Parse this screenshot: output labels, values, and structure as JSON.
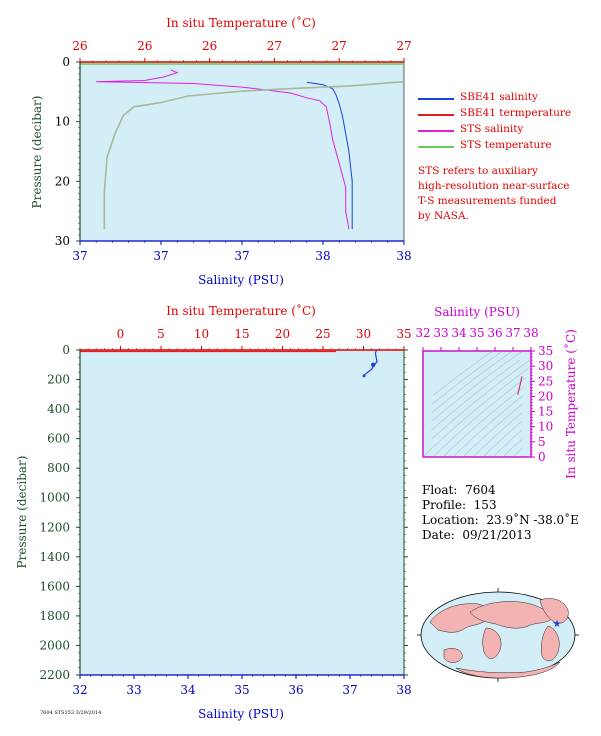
{
  "colors": {
    "plot_bg": "#d3eef7",
    "temp_axis": "#e00000",
    "sal_axis": "#0000c0",
    "pres_axis": "#1e4f2a",
    "ts_axis": "#cc00cc",
    "sbe_sal": "#1a40e0",
    "sbe_temp": "#e02020",
    "sts_sal": "#e020e0",
    "sts_temp": "#66cc55",
    "note_text": "#e00000"
  },
  "top_chart": {
    "title_top": "In situ Temperature (˚C)",
    "xlabel_bottom": "Salinity (PSU)",
    "ylabel": "Pressure (decibar)",
    "temp_ticks": [
      "26",
      "26",
      "26",
      "27",
      "27",
      "27"
    ],
    "sal_ticks": [
      "37",
      "37",
      "37",
      "38",
      "38"
    ],
    "pres_ticks": [
      "0",
      "10",
      "20",
      "30"
    ],
    "legend": [
      {
        "label": "SBE41 salinity",
        "color": "#1a40e0"
      },
      {
        "label": "SBE41 termperature",
        "color": "#e02020"
      },
      {
        "label": "STS salinity",
        "color": "#e020e0"
      },
      {
        "label": "STS temperature",
        "color": "#66cc55"
      }
    ],
    "note_lines": [
      "STS refers to auxiliary",
      "high-resolution near-surface",
      "T-S measurements funded",
      "by NASA."
    ]
  },
  "bottom_chart": {
    "title_top": "In situ Temperature (˚C)",
    "xlabel_bottom": "Salinity (PSU)",
    "ylabel": "Pressure (decibar)",
    "temp_ticks": [
      "0",
      "5",
      "10",
      "15",
      "20",
      "25",
      "30",
      "35"
    ],
    "sal_ticks": [
      "32",
      "33",
      "34",
      "35",
      "36",
      "37",
      "38"
    ],
    "pres_ticks": [
      "0",
      "200",
      "400",
      "600",
      "800",
      "1000",
      "1200",
      "1400",
      "1600",
      "1800",
      "2000",
      "2200"
    ]
  },
  "ts_chart": {
    "title_top": "Salinity (PSU)",
    "ylabel": "In situ Temperature (˚C)",
    "sal_ticks": [
      "32",
      "33",
      "34",
      "35",
      "36",
      "37",
      "38"
    ],
    "temp_ticks": [
      "0",
      "5",
      "10",
      "15",
      "20",
      "25",
      "30",
      "35"
    ]
  },
  "float_info": {
    "float_label": "Float:",
    "float_value": "7604",
    "profile_label": "Profile:",
    "profile_value": "153",
    "location_label": "Location:",
    "location_value": "23.9˚N  -38.0˚E",
    "date_label": "Date:",
    "date_value": "09/21/2013"
  },
  "file_id": "7604 STS153 3/29/2014",
  "chart_data": [
    {
      "type": "line",
      "title": "In situ Temperature (˚C)",
      "xlabel": "Salinity (PSU)",
      "ylabel": "Pressure (decibar)",
      "xlim_salinity": [
        37.0,
        38.0
      ],
      "xlim_temperature": [
        25.8,
        27.0
      ],
      "ylim": [
        30,
        0
      ],
      "series": [
        {
          "name": "SBE41 salinity",
          "x": [
            37.7,
            37.75,
            37.78,
            37.79,
            37.8,
            37.81,
            37.82,
            37.83,
            37.84,
            37.84,
            37.84
          ],
          "y": [
            3.4,
            3.8,
            4.5,
            5.5,
            7,
            9,
            12,
            15,
            20,
            25,
            28
          ]
        },
        {
          "name": "STS salinity",
          "x": [
            37.28,
            37.3,
            37.26,
            37.2,
            37.05,
            37.35,
            37.5,
            37.65,
            37.7,
            37.74,
            37.76,
            37.77,
            37.78,
            37.8,
            37.82,
            37.82,
            37.83
          ],
          "y": [
            1.3,
            1.8,
            2.5,
            3.1,
            3.3,
            3.6,
            4.2,
            5.2,
            6.0,
            6.5,
            7.5,
            10,
            13,
            17,
            21,
            25,
            28
          ]
        },
        {
          "name": "STS temperature",
          "x": [
            27.0,
            26.8,
            26.6,
            26.4,
            26.2,
            26.1,
            26.0,
            25.96,
            25.93,
            25.9,
            25.89,
            25.89
          ],
          "y": [
            3.3,
            4.0,
            4.4,
            4.9,
            5.7,
            6.8,
            7.5,
            9.0,
            12,
            16,
            22,
            28
          ]
        },
        {
          "name": "SBE41 termperature",
          "x": [
            27.0,
            26.8,
            26.6,
            26.4,
            26.2,
            26.1,
            26.0,
            25.96,
            25.93,
            25.9,
            25.89,
            25.89
          ],
          "y": [
            3.3,
            4.0,
            4.4,
            4.9,
            5.7,
            6.8,
            7.5,
            9.0,
            12,
            16,
            22,
            28
          ]
        }
      ]
    },
    {
      "type": "line",
      "title": "In situ Temperature (˚C)",
      "xlabel": "Salinity (PSU)",
      "ylabel": "Pressure (decibar)",
      "xlim_salinity": [
        32,
        38
      ],
      "xlim_temperature": [
        -5,
        35
      ],
      "ylim": [
        2200,
        0
      ],
      "series": [
        {
          "name": "SBE41 salinity",
          "x": [
            37.49,
            37.47,
            37.5,
            37.45,
            37.4,
            37.33,
            37.28,
            37.26
          ],
          "y": [
            0,
            20,
            80,
            100,
            130,
            150,
            165,
            175
          ]
        },
        {
          "name": "SBE41 termperature",
          "x": [
            26.6,
            26.4,
            25.8,
            24.5,
            23.0,
            21.5,
            20.5
          ],
          "y": [
            0,
            30,
            60,
            100,
            130,
            160,
            180
          ]
        }
      ]
    },
    {
      "type": "scatter",
      "title": "Salinity (PSU)",
      "ylabel": "In situ Temperature (˚C)",
      "xlim": [
        32,
        38
      ],
      "ylim": [
        0,
        35
      ],
      "series": [
        {
          "name": "SBE41",
          "x": [
            37.26,
            37.3,
            37.36,
            37.42,
            37.46,
            37.5
          ],
          "y": [
            20.5,
            21.5,
            23.0,
            24.5,
            25.8,
            26.6
          ]
        }
      ]
    }
  ]
}
